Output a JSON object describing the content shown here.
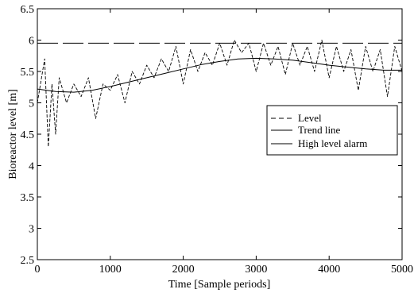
{
  "chart_data": {
    "type": "line",
    "xlabel": "Time [Sample periods]",
    "ylabel": "Bioreactor level [m]",
    "xlim": [
      0,
      5000
    ],
    "ylim": [
      2.5,
      6.5
    ],
    "x_ticks": [
      0,
      1000,
      2000,
      3000,
      4000,
      5000
    ],
    "y_ticks": [
      2.5,
      3,
      3.5,
      4,
      4.5,
      5,
      5.5,
      6,
      6.5
    ],
    "grid": false,
    "legend_position": "right-center",
    "series": [
      {
        "name": "Level",
        "style": "dashed",
        "x": [
          0,
          100,
          150,
          200,
          250,
          300,
          400,
          500,
          600,
          700,
          800,
          900,
          1000,
          1100,
          1200,
          1300,
          1400,
          1500,
          1600,
          1700,
          1800,
          1900,
          2000,
          2100,
          2200,
          2300,
          2400,
          2500,
          2600,
          2700,
          2800,
          2900,
          3000,
          3100,
          3200,
          3300,
          3400,
          3500,
          3600,
          3700,
          3800,
          3900,
          4000,
          4100,
          4200,
          4300,
          4400,
          4500,
          4600,
          4700,
          4800,
          4900,
          5000
        ],
        "y": [
          5.0,
          5.7,
          4.3,
          5.3,
          4.5,
          5.4,
          5.0,
          5.3,
          5.1,
          5.4,
          4.75,
          5.3,
          5.2,
          5.45,
          5.0,
          5.5,
          5.3,
          5.6,
          5.4,
          5.7,
          5.5,
          5.9,
          5.3,
          5.85,
          5.5,
          5.8,
          5.6,
          5.95,
          5.6,
          6.0,
          5.8,
          5.95,
          5.5,
          5.95,
          5.6,
          5.9,
          5.45,
          5.95,
          5.6,
          5.9,
          5.5,
          6.0,
          5.4,
          5.9,
          5.5,
          5.85,
          5.2,
          5.9,
          5.5,
          5.85,
          5.1,
          5.9,
          5.5
        ]
      },
      {
        "name": "Trend line",
        "style": "solid",
        "x": [
          0,
          250,
          500,
          750,
          1000,
          1250,
          1500,
          1750,
          2000,
          2250,
          2500,
          2750,
          3000,
          3250,
          3500,
          3750,
          4000,
          4250,
          4500,
          4750,
          5000
        ],
        "y": [
          5.22,
          5.18,
          5.17,
          5.2,
          5.26,
          5.33,
          5.4,
          5.47,
          5.54,
          5.61,
          5.66,
          5.7,
          5.71,
          5.7,
          5.68,
          5.64,
          5.6,
          5.57,
          5.54,
          5.52,
          5.52
        ]
      },
      {
        "name": "High level alarm",
        "style": "long-dash",
        "x": [
          0,
          5000
        ],
        "y": [
          5.95,
          5.95
        ]
      }
    ]
  }
}
